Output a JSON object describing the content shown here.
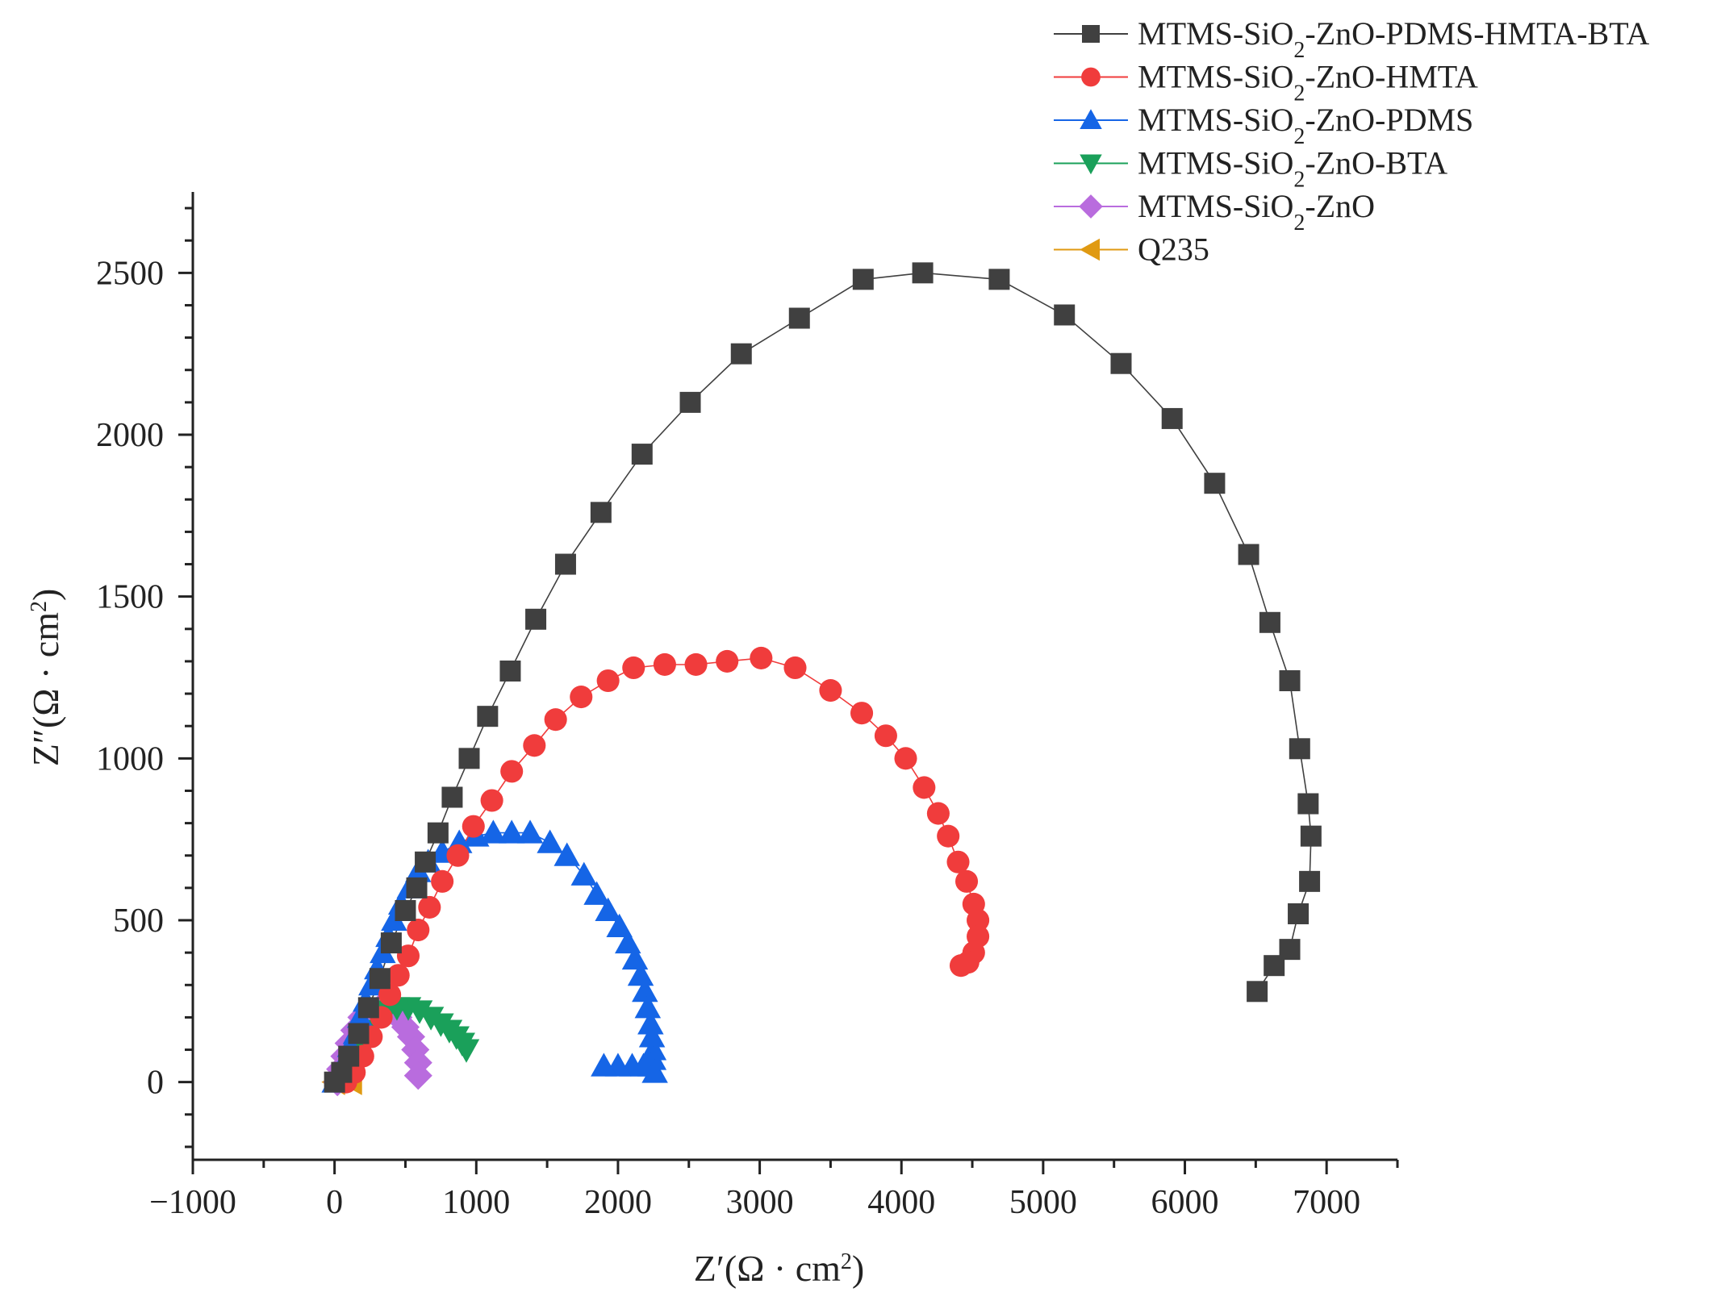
{
  "chart_data": {
    "type": "scatter",
    "title": "",
    "xlabel": {
      "prefix": "Z′(Ω · cm",
      "sup": "2",
      "suffix": ")"
    },
    "ylabel": {
      "prefix": "Z″(Ω · cm",
      "sup": "2",
      "suffix": ")"
    },
    "xlim": [
      -1000,
      7500
    ],
    "ylim": [
      -240,
      2750
    ],
    "x_ticks": [
      -1000,
      0,
      1000,
      2000,
      3000,
      4000,
      5000,
      6000,
      7000
    ],
    "x_tick_labels": [
      "−1000",
      "0",
      "1000",
      "2000",
      "3000",
      "4000",
      "5000",
      "6000",
      "7000"
    ],
    "y_ticks": [
      0,
      500,
      1000,
      1500,
      2000,
      2500
    ],
    "y_tick_labels": [
      "0",
      "500",
      "1000",
      "1500",
      "2000",
      "2500"
    ],
    "grid": false,
    "legend_position": "top-right",
    "series": [
      {
        "name": "MTMS-SiO2-ZnO-PDMS-HMTA-BTA",
        "label": {
          "pre": "MTMS-SiO",
          "sub": "2",
          "post": "-ZnO-PDMS-HMTA-BTA"
        },
        "color": "#404040",
        "marker": "square",
        "line": true,
        "points": [
          [
            0,
            0
          ],
          [
            50,
            30
          ],
          [
            100,
            80
          ],
          [
            170,
            150
          ],
          [
            240,
            230
          ],
          [
            320,
            320
          ],
          [
            400,
            430
          ],
          [
            500,
            530
          ],
          [
            580,
            600
          ],
          [
            640,
            680
          ],
          [
            730,
            770
          ],
          [
            830,
            880
          ],
          [
            950,
            1000
          ],
          [
            1080,
            1130
          ],
          [
            1240,
            1270
          ],
          [
            1420,
            1430
          ],
          [
            1630,
            1600
          ],
          [
            1880,
            1760
          ],
          [
            2170,
            1940
          ],
          [
            2510,
            2100
          ],
          [
            2870,
            2250
          ],
          [
            3280,
            2360
          ],
          [
            3730,
            2480
          ],
          [
            4150,
            2500
          ],
          [
            4690,
            2480
          ],
          [
            5150,
            2370
          ],
          [
            5550,
            2220
          ],
          [
            5910,
            2050
          ],
          [
            6210,
            1850
          ],
          [
            6450,
            1630
          ],
          [
            6600,
            1420
          ],
          [
            6740,
            1240
          ],
          [
            6810,
            1030
          ],
          [
            6870,
            860
          ],
          [
            6890,
            760
          ],
          [
            6880,
            620
          ],
          [
            6800,
            520
          ],
          [
            6740,
            410
          ],
          [
            6630,
            360
          ],
          [
            6510,
            280
          ]
        ]
      },
      {
        "name": "MTMS-SiO2-ZnO-HMTA",
        "label": {
          "pre": "MTMS-SiO",
          "sub": "2",
          "post": "-ZnO-HMTA"
        },
        "color": "#f03c3c",
        "marker": "circle",
        "line": true,
        "points": [
          [
            80,
            0
          ],
          [
            140,
            30
          ],
          [
            200,
            80
          ],
          [
            260,
            140
          ],
          [
            330,
            200
          ],
          [
            390,
            270
          ],
          [
            450,
            330
          ],
          [
            520,
            390
          ],
          [
            590,
            470
          ],
          [
            670,
            540
          ],
          [
            760,
            620
          ],
          [
            870,
            700
          ],
          [
            980,
            790
          ],
          [
            1110,
            870
          ],
          [
            1250,
            960
          ],
          [
            1410,
            1040
          ],
          [
            1560,
            1120
          ],
          [
            1740,
            1190
          ],
          [
            1930,
            1240
          ],
          [
            2110,
            1280
          ],
          [
            2330,
            1290
          ],
          [
            2550,
            1290
          ],
          [
            2770,
            1300
          ],
          [
            3010,
            1310
          ],
          [
            3250,
            1280
          ],
          [
            3500,
            1210
          ],
          [
            3720,
            1140
          ],
          [
            3890,
            1070
          ],
          [
            4030,
            1000
          ],
          [
            4160,
            910
          ],
          [
            4260,
            830
          ],
          [
            4330,
            760
          ],
          [
            4400,
            680
          ],
          [
            4460,
            620
          ],
          [
            4510,
            550
          ],
          [
            4540,
            500
          ],
          [
            4540,
            450
          ],
          [
            4510,
            400
          ],
          [
            4470,
            370
          ],
          [
            4420,
            360
          ]
        ]
      },
      {
        "name": "MTMS-SiO2-ZnO-PDMS",
        "label": {
          "pre": "MTMS-SiO",
          "sub": "2",
          "post": "-ZnO-PDMS"
        },
        "color": "#1565e6",
        "marker": "triangle-up",
        "line": true,
        "points": [
          [
            0,
            0
          ],
          [
            40,
            30
          ],
          [
            80,
            70
          ],
          [
            110,
            110
          ],
          [
            150,
            150
          ],
          [
            180,
            200
          ],
          [
            220,
            250
          ],
          [
            260,
            300
          ],
          [
            300,
            350
          ],
          [
            340,
            400
          ],
          [
            380,
            450
          ],
          [
            420,
            500
          ],
          [
            470,
            550
          ],
          [
            530,
            600
          ],
          [
            590,
            650
          ],
          [
            660,
            680
          ],
          [
            760,
            710
          ],
          [
            880,
            740
          ],
          [
            1000,
            760
          ],
          [
            1120,
            770
          ],
          [
            1250,
            770
          ],
          [
            1380,
            770
          ],
          [
            1520,
            740
          ],
          [
            1640,
            700
          ],
          [
            1760,
            640
          ],
          [
            1850,
            580
          ],
          [
            1930,
            530
          ],
          [
            2010,
            480
          ],
          [
            2070,
            430
          ],
          [
            2120,
            380
          ],
          [
            2160,
            330
          ],
          [
            2190,
            280
          ],
          [
            2210,
            230
          ],
          [
            2230,
            180
          ],
          [
            2240,
            140
          ],
          [
            2250,
            100
          ],
          [
            2250,
            70
          ],
          [
            2230,
            50
          ],
          [
            2180,
            50
          ],
          [
            2100,
            50
          ],
          [
            2000,
            50
          ],
          [
            1900,
            50
          ],
          [
            2260,
            30
          ]
        ]
      },
      {
        "name": "MTMS-SiO2-ZnO-BTA",
        "label": {
          "pre": "MTMS-SiO",
          "sub": "2",
          "post": "-ZnO-BTA"
        },
        "color": "#1aa05a",
        "marker": "triangle-down",
        "line": true,
        "points": [
          [
            200,
            100
          ],
          [
            250,
            160
          ],
          [
            310,
            200
          ],
          [
            370,
            220
          ],
          [
            440,
            230
          ],
          [
            520,
            230
          ],
          [
            600,
            220
          ],
          [
            680,
            200
          ],
          [
            750,
            180
          ],
          [
            810,
            160
          ],
          [
            860,
            140
          ],
          [
            900,
            120
          ],
          [
            930,
            100
          ]
        ]
      },
      {
        "name": "MTMS-SiO2-ZnO",
        "label": {
          "pre": "MTMS-SiO",
          "sub": "2",
          "post": "-ZnO"
        },
        "color": "#b96cde",
        "marker": "diamond",
        "line": true,
        "points": [
          [
            20,
            0
          ],
          [
            40,
            40
          ],
          [
            70,
            80
          ],
          [
            100,
            120
          ],
          [
            140,
            160
          ],
          [
            190,
            200
          ],
          [
            250,
            220
          ],
          [
            320,
            230
          ],
          [
            390,
            220
          ],
          [
            450,
            200
          ],
          [
            500,
            170
          ],
          [
            540,
            140
          ],
          [
            570,
            100
          ],
          [
            590,
            60
          ],
          [
            590,
            20
          ]
        ]
      },
      {
        "name": "Q235",
        "label": {
          "pre": "Q235",
          "sub": "",
          "post": ""
        },
        "color": "#e09a12",
        "marker": "triangle-left",
        "line": true,
        "points": [
          [
            0,
            0
          ],
          [
            20,
            10
          ],
          [
            40,
            20
          ],
          [
            60,
            25
          ],
          [
            80,
            25
          ],
          [
            100,
            20
          ],
          [
            115,
            10
          ],
          [
            120,
            0
          ]
        ]
      }
    ]
  }
}
